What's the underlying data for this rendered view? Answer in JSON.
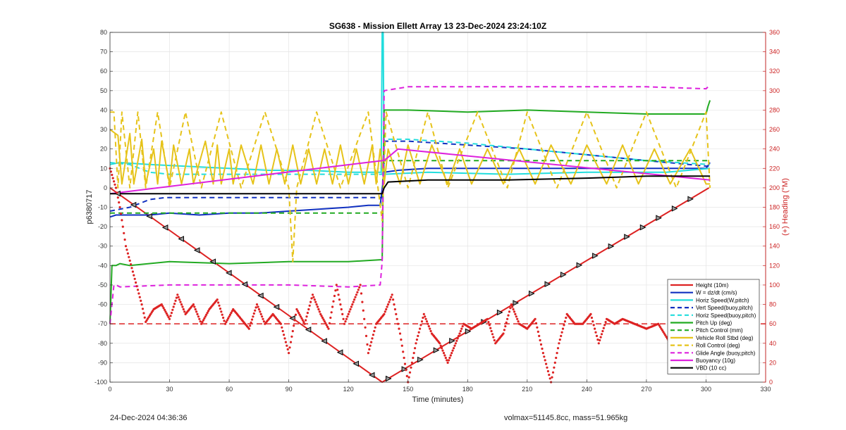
{
  "chart_data": {
    "type": "line",
    "title": "SG638 - Mission Ellett Array 13 23-Dec-2024 23:24:10Z",
    "xlabel": "Time (minutes)",
    "ylabel": "p6380717",
    "y2label": "(+) Heading (°M)",
    "xlim": [
      0,
      330
    ],
    "ylim": [
      -100,
      80
    ],
    "y2lim": [
      0,
      360
    ],
    "xticks": [
      "0",
      "30",
      "60",
      "90",
      "120",
      "150",
      "180",
      "210",
      "240",
      "270",
      "300",
      "330"
    ],
    "yticks": [
      "-100",
      "-90",
      "-80",
      "-70",
      "-60",
      "-50",
      "-40",
      "-30",
      "-20",
      "-10",
      "0",
      "10",
      "20",
      "30",
      "40",
      "50",
      "60",
      "70",
      "80"
    ],
    "y2ticks": [
      "0",
      "20",
      "40",
      "60",
      "80",
      "100",
      "120",
      "140",
      "160",
      "180",
      "200",
      "220",
      "240",
      "260",
      "280",
      "300",
      "320",
      "340",
      "360"
    ],
    "legend_position": "bottom-right",
    "grid": true,
    "axis_colors": {
      "left": "#333333",
      "right": "#cc2222"
    },
    "series": [
      {
        "name": "Height (10m)",
        "color": "#dd2222",
        "style": "solid",
        "x": [
          0,
          137,
          301.5
        ],
        "y": [
          0,
          -100,
          0
        ]
      },
      {
        "name": "W = dz/dt (cm/s)",
        "color": "#1030c0",
        "style": "solid",
        "x": [
          0,
          3,
          10,
          20,
          30,
          45,
          60,
          75,
          90,
          105,
          120,
          130,
          136,
          138,
          145,
          160,
          180,
          200,
          220,
          240,
          260,
          280,
          300,
          302
        ],
        "y": [
          -15,
          -14,
          -14,
          -14,
          -13,
          -14,
          -13,
          -13,
          -12,
          -11,
          -10,
          -9,
          -9,
          8,
          9,
          10,
          10,
          10,
          10,
          10,
          10,
          10,
          10,
          13
        ]
      },
      {
        "name": "Horiz Speed(W,pitch)",
        "color": "#22dddd",
        "style": "solid",
        "x": [
          0,
          5,
          20,
          40,
          60,
          80,
          100,
          120,
          135,
          136.5,
          137,
          137.5,
          138,
          160,
          200,
          240,
          280,
          302
        ],
        "y": [
          12,
          13,
          12,
          11,
          10,
          9,
          9,
          8,
          8,
          8,
          80,
          80,
          7,
          8,
          7,
          8,
          8,
          10
        ]
      },
      {
        "name": "Vert Speed(buoy,pitch)",
        "color": "#1030c0",
        "style": "dashed",
        "x": [
          0,
          10,
          20,
          28,
          40,
          137,
          138,
          150,
          180,
          210,
          240,
          270,
          302
        ],
        "y": [
          -12,
          -10,
          -6,
          -5,
          -5,
          -5,
          24,
          24,
          22,
          20,
          17,
          14,
          11
        ]
      },
      {
        "name": "Horiz Speed(buoy,pitch)",
        "color": "#22dddd",
        "style": "dashed",
        "x": [
          0,
          10,
          20,
          30,
          40,
          137,
          138,
          150,
          180,
          210,
          240,
          270,
          302
        ],
        "y": [
          13,
          12,
          8,
          7,
          7,
          7,
          25,
          25,
          23,
          20,
          17,
          14,
          12
        ]
      },
      {
        "name": "Pitch Up (deg)",
        "color": "#22aa22",
        "style": "solid",
        "x": [
          0,
          1,
          3,
          5,
          10,
          30,
          60,
          90,
          120,
          136,
          137,
          138,
          150,
          180,
          210,
          240,
          270,
          300,
          301,
          302
        ],
        "y": [
          -70,
          -40,
          -40,
          -39,
          -40,
          -38,
          -39,
          -38,
          -38,
          -37,
          -37,
          40,
          40,
          39,
          40,
          39,
          38,
          38,
          42,
          45
        ]
      },
      {
        "name": "Pitch Control (mm)",
        "color": "#22aa22",
        "style": "dashed",
        "x": [
          0,
          137,
          138,
          302
        ],
        "y": [
          -13,
          -13,
          14,
          14
        ]
      },
      {
        "name": "Vehicle Roll Stbd (deg)",
        "color": "#e6c31a",
        "style": "solid",
        "x": [
          0,
          4,
          6,
          10,
          12,
          16,
          18,
          22,
          24,
          26,
          30,
          32,
          36,
          40,
          42,
          48,
          52,
          54,
          56,
          60,
          62,
          66,
          72,
          76,
          80,
          84,
          88,
          92,
          96,
          100,
          104,
          108,
          112,
          116,
          120,
          124,
          128,
          132,
          134,
          136,
          138,
          140,
          146,
          150,
          156,
          162,
          170,
          176,
          182,
          190,
          198,
          206,
          214,
          222,
          232,
          240,
          250,
          258,
          266,
          274,
          282,
          292,
          300,
          302
        ],
        "y": [
          30,
          27,
          2,
          28,
          2,
          25,
          2,
          20,
          2,
          24,
          2,
          22,
          2,
          20,
          2,
          24,
          2,
          22,
          2,
          20,
          2,
          22,
          2,
          22,
          2,
          20,
          2,
          22,
          2,
          20,
          2,
          20,
          2,
          22,
          2,
          20,
          2,
          22,
          2,
          20,
          2,
          20,
          2,
          22,
          2,
          22,
          2,
          20,
          2,
          20,
          2,
          20,
          2,
          22,
          2,
          22,
          2,
          22,
          2,
          20,
          2,
          20,
          2,
          2
        ]
      },
      {
        "name": "Roll Control (deg)",
        "color": "#e6c31a",
        "style": "dashed",
        "x": [
          0,
          2,
          4,
          6,
          10,
          14,
          18,
          24,
          30,
          38,
          46,
          56,
          66,
          78,
          90,
          92,
          94,
          104,
          116,
          130,
          137,
          139,
          150,
          160,
          170,
          185,
          200,
          210,
          225,
          240,
          255,
          270,
          285,
          300,
          302
        ],
        "y": [
          39,
          39,
          0,
          39,
          0,
          39,
          0,
          39,
          0,
          39,
          0,
          39,
          0,
          39,
          0,
          -38,
          0,
          39,
          0,
          39,
          -17,
          39,
          0,
          39,
          0,
          39,
          0,
          39,
          0,
          39,
          0,
          39,
          0,
          39,
          0
        ]
      },
      {
        "name": "Glide Angle (buoy,pitch)",
        "color": "#dd22dd",
        "style": "dashed",
        "x": [
          0,
          2,
          3,
          5,
          30,
          60,
          90,
          120,
          136,
          137,
          138,
          150,
          180,
          210,
          240,
          270,
          300,
          302
        ],
        "y": [
          -70,
          -50,
          -50,
          -51,
          -50,
          -50,
          -50,
          -51,
          -50,
          -38,
          50,
          52,
          52,
          52,
          52,
          52,
          51,
          53
        ]
      },
      {
        "name": "Buoyancy (10g)",
        "color": "#dd22dd",
        "style": "solid",
        "x": [
          0,
          137,
          138,
          145,
          302
        ],
        "y": [
          -3,
          14,
          14,
          20,
          4
        ]
      },
      {
        "name": "VBD (10 cc)",
        "color": "#000000",
        "style": "solid",
        "x": [
          0,
          137,
          138,
          140,
          160,
          180,
          200,
          240,
          270,
          302
        ],
        "y": [
          -3,
          -3,
          0,
          3,
          4,
          4,
          4,
          5,
          6,
          6
        ]
      }
    ],
    "heading": {
      "name": "Heading (°M)",
      "color": "#dd2222",
      "axis": "right",
      "x": [
        0,
        3,
        5,
        8,
        12,
        16,
        18,
        22,
        26,
        30,
        34,
        38,
        42,
        46,
        50,
        54,
        58,
        62,
        66,
        70,
        74,
        78,
        82,
        86,
        90,
        94,
        98,
        102,
        106,
        110,
        114,
        118,
        122,
        126,
        130,
        134,
        138,
        142,
        146,
        150,
        154,
        158,
        162,
        166,
        170,
        174,
        178,
        182,
        186,
        190,
        194,
        198,
        202,
        206,
        210,
        214,
        218,
        222,
        226,
        230,
        234,
        238,
        242,
        246,
        250,
        254,
        258,
        264,
        270,
        276,
        282,
        290,
        298,
        302
      ],
      "y": [
        220,
        200,
        180,
        140,
        110,
        80,
        62,
        75,
        80,
        65,
        90,
        70,
        80,
        60,
        75,
        85,
        60,
        75,
        65,
        55,
        80,
        60,
        70,
        60,
        30,
        75,
        60,
        90,
        70,
        55,
        100,
        60,
        80,
        100,
        30,
        60,
        70,
        90,
        50,
        0,
        40,
        70,
        50,
        40,
        20,
        40,
        60,
        55,
        60,
        65,
        40,
        50,
        80,
        60,
        55,
        65,
        30,
        0,
        40,
        70,
        60,
        60,
        70,
        40,
        65,
        60,
        65,
        60,
        55,
        60,
        40,
        55,
        60,
        58
      ],
      "reference_line": 60
    }
  },
  "footer": {
    "timestamp": "24-Dec-2024 04:36:36",
    "info": "volmax=51145.8cc, mass=51.965kg"
  }
}
